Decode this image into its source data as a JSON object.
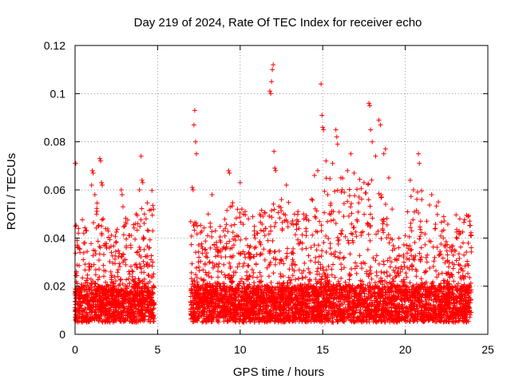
{
  "chart_data": {
    "type": "scatter",
    "title": "Day 219 of 2024, Rate Of TEC Index for receiver echo",
    "xlabel": "GPS time / hours",
    "ylabel": "ROTI / TECUs",
    "xlim": [
      0,
      25
    ],
    "ylim": [
      0,
      0.12
    ],
    "x_ticks": [
      "0",
      "5",
      "10",
      "15",
      "20",
      "25"
    ],
    "y_ticks": [
      "0",
      "0.02",
      "0.04",
      "0.06",
      "0.08",
      "0.1",
      "0.12"
    ],
    "x_tick_values": [
      0,
      5,
      10,
      15,
      20,
      25
    ],
    "y_tick_values": [
      0,
      0.02,
      0.04,
      0.06,
      0.08,
      0.1,
      0.12
    ],
    "grid": true,
    "marker": "+",
    "series": [
      {
        "color": "#ff0000",
        "description": "Dense band of ROTI values mostly 0.005-0.02 TECU/s from 0-4.8 h and 7.0-24.0 h, with data gap between about 4.8 and 7.0 h; scattered excursions up to 0.11.",
        "points": [
          [
            0.0,
            0.071
          ],
          [
            0.05,
            0.071
          ],
          [
            0.3,
            0.034
          ],
          [
            0.5,
            0.031
          ],
          [
            0.7,
            0.043
          ],
          [
            0.9,
            0.028
          ],
          [
            1.0,
            0.062
          ],
          [
            1.05,
            0.068
          ],
          [
            1.1,
            0.067
          ],
          [
            1.2,
            0.058
          ],
          [
            1.3,
            0.05
          ],
          [
            1.4,
            0.045
          ],
          [
            1.5,
            0.073
          ],
          [
            1.55,
            0.072
          ],
          [
            1.6,
            0.063
          ],
          [
            1.65,
            0.062
          ],
          [
            1.7,
            0.048
          ],
          [
            1.75,
            0.037
          ],
          [
            2.2,
            0.034
          ],
          [
            2.6,
            0.024
          ],
          [
            2.8,
            0.06
          ],
          [
            2.85,
            0.058
          ],
          [
            2.9,
            0.053
          ],
          [
            3.0,
            0.045
          ],
          [
            3.1,
            0.036
          ],
          [
            3.3,
            0.041
          ],
          [
            3.5,
            0.026
          ],
          [
            3.7,
            0.05
          ],
          [
            3.8,
            0.046
          ],
          [
            3.9,
            0.06
          ],
          [
            4.0,
            0.074
          ],
          [
            4.05,
            0.064
          ],
          [
            4.1,
            0.063
          ],
          [
            4.2,
            0.05
          ],
          [
            4.3,
            0.048
          ],
          [
            4.45,
            0.043
          ],
          [
            4.5,
            0.036
          ],
          [
            4.6,
            0.031
          ],
          [
            4.7,
            0.043
          ],
          [
            7.1,
            0.061
          ],
          [
            7.15,
            0.06
          ],
          [
            7.2,
            0.087
          ],
          [
            7.25,
            0.093
          ],
          [
            7.3,
            0.08
          ],
          [
            7.35,
            0.075
          ],
          [
            7.4,
            0.045
          ],
          [
            7.5,
            0.032
          ],
          [
            8.0,
            0.032
          ],
          [
            8.3,
            0.058
          ],
          [
            8.5,
            0.043
          ],
          [
            8.8,
            0.035
          ],
          [
            9.1,
            0.044
          ],
          [
            9.3,
            0.068
          ],
          [
            9.35,
            0.067
          ],
          [
            9.5,
            0.032
          ],
          [
            9.8,
            0.041
          ],
          [
            10.0,
            0.063
          ],
          [
            10.1,
            0.052
          ],
          [
            10.3,
            0.051
          ],
          [
            10.5,
            0.048
          ],
          [
            10.9,
            0.04
          ],
          [
            11.2,
            0.038
          ],
          [
            11.5,
            0.041
          ],
          [
            11.8,
            0.101
          ],
          [
            11.85,
            0.1
          ],
          [
            11.9,
            0.105
          ],
          [
            11.95,
            0.11
          ],
          [
            12.0,
            0.112
          ],
          [
            12.05,
            0.076
          ],
          [
            12.1,
            0.069
          ],
          [
            12.15,
            0.068
          ],
          [
            12.5,
            0.056
          ],
          [
            12.8,
            0.062
          ],
          [
            13.1,
            0.046
          ],
          [
            13.5,
            0.051
          ],
          [
            14.0,
            0.041
          ],
          [
            14.5,
            0.066
          ],
          [
            14.7,
            0.068
          ],
          [
            14.9,
            0.104
          ],
          [
            14.95,
            0.091
          ],
          [
            15.0,
            0.086
          ],
          [
            15.05,
            0.085
          ],
          [
            15.2,
            0.072
          ],
          [
            15.3,
            0.058
          ],
          [
            15.6,
            0.071
          ],
          [
            15.8,
            0.085
          ],
          [
            15.85,
            0.082
          ],
          [
            15.9,
            0.079
          ],
          [
            16.1,
            0.065
          ],
          [
            16.3,
            0.059
          ],
          [
            16.5,
            0.068
          ],
          [
            16.7,
            0.075
          ],
          [
            16.9,
            0.067
          ],
          [
            17.2,
            0.057
          ],
          [
            17.5,
            0.063
          ],
          [
            17.8,
            0.096
          ],
          [
            17.85,
            0.095
          ],
          [
            17.9,
            0.085
          ],
          [
            18.0,
            0.08
          ],
          [
            18.2,
            0.074
          ],
          [
            18.4,
            0.089
          ],
          [
            18.5,
            0.087
          ],
          [
            18.7,
            0.075
          ],
          [
            18.8,
            0.077
          ],
          [
            19.0,
            0.065
          ],
          [
            19.2,
            0.052
          ],
          [
            19.6,
            0.036
          ],
          [
            20.0,
            0.041
          ],
          [
            20.3,
            0.064
          ],
          [
            20.5,
            0.06
          ],
          [
            20.8,
            0.075
          ],
          [
            20.85,
            0.071
          ],
          [
            21.0,
            0.056
          ],
          [
            21.3,
            0.047
          ],
          [
            21.6,
            0.058
          ],
          [
            22.0,
            0.055
          ],
          [
            22.3,
            0.04
          ],
          [
            22.7,
            0.036
          ],
          [
            23.0,
            0.035
          ],
          [
            23.5,
            0.038
          ],
          [
            23.8,
            0.049
          ],
          [
            23.9,
            0.047
          ],
          [
            23.95,
            0.041
          ]
        ],
        "band": {
          "segments": [
            [
              0.0,
              4.8
            ],
            [
              7.0,
              24.0
            ]
          ],
          "typical_min": 0.005,
          "typical_max": 0.02,
          "hour_spread": [
            [
              0.5,
              0.028
            ],
            [
              1.5,
              0.035
            ],
            [
              2.5,
              0.025
            ],
            [
              3.5,
              0.03
            ],
            [
              4.3,
              0.04
            ],
            [
              7.5,
              0.028
            ],
            [
              8.5,
              0.03
            ],
            [
              9.5,
              0.035
            ],
            [
              10.5,
              0.035
            ],
            [
              11.5,
              0.032
            ],
            [
              12.5,
              0.035
            ],
            [
              13.5,
              0.032
            ],
            [
              14.5,
              0.04
            ],
            [
              15.5,
              0.045
            ],
            [
              16.5,
              0.045
            ],
            [
              17.5,
              0.045
            ],
            [
              18.5,
              0.04
            ],
            [
              19.5,
              0.02
            ],
            [
              20.5,
              0.04
            ],
            [
              21.5,
              0.035
            ],
            [
              22.5,
              0.03
            ],
            [
              23.5,
              0.03
            ]
          ]
        }
      }
    ]
  }
}
